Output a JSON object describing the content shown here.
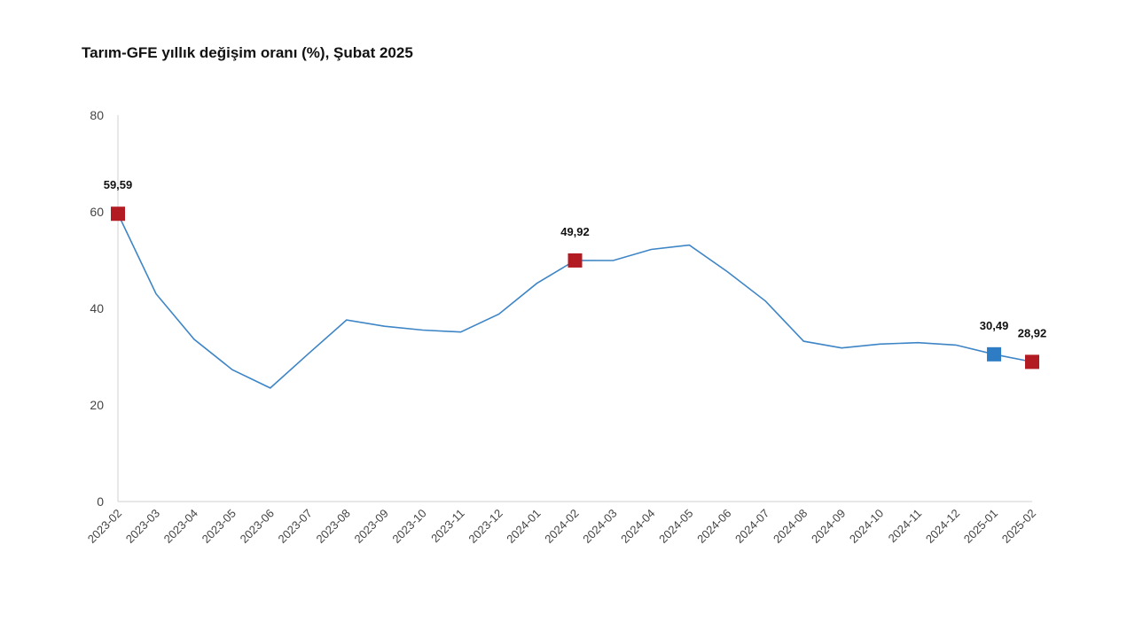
{
  "chart_data": {
    "type": "line",
    "title": "Tarım-GFE yıllık değişim oranı (%), Şubat 2025",
    "xlabel": "",
    "ylabel": "",
    "ylim": [
      0,
      80
    ],
    "yticks": [
      0,
      20,
      40,
      60,
      80
    ],
    "grid": false,
    "legend": "none",
    "categories": [
      "2023-02",
      "2023-03",
      "2023-04",
      "2023-05",
      "2023-06",
      "2023-07",
      "2023-08",
      "2023-09",
      "2023-10",
      "2023-11",
      "2023-12",
      "2024-01",
      "2024-02",
      "2024-03",
      "2024-04",
      "2024-05",
      "2024-06",
      "2024-07",
      "2024-08",
      "2024-09",
      "2024-10",
      "2024-11",
      "2024-12",
      "2025-01",
      "2025-02"
    ],
    "series": [
      {
        "values": [
          59.59,
          43.0,
          33.6,
          27.3,
          23.5,
          30.6,
          37.6,
          36.3,
          35.5,
          35.1,
          38.8,
          45.2,
          49.92,
          49.9,
          52.2,
          53.1,
          47.6,
          41.5,
          33.2,
          31.8,
          32.6,
          32.9,
          32.4,
          30.49,
          28.92
        ],
        "color": "#3d85c6"
      }
    ],
    "highlights": [
      {
        "category": "2023-02",
        "value": 59.59,
        "label": "59,59",
        "color": "#b31b22"
      },
      {
        "category": "2024-02",
        "value": 49.92,
        "label": "49,92",
        "color": "#b31b22"
      },
      {
        "category": "2025-01",
        "value": 30.49,
        "label": "30,49",
        "color": "#2e7cc4"
      },
      {
        "category": "2025-02",
        "value": 28.92,
        "label": "28,92",
        "color": "#b31b22"
      }
    ],
    "axis_color": "#d0d0d0"
  }
}
